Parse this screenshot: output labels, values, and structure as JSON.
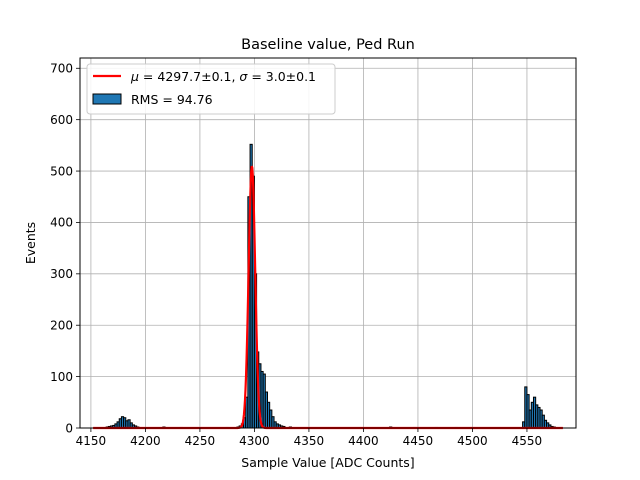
{
  "chart_data": {
    "type": "bar",
    "title": "Baseline value, Ped Run",
    "xlabel": "Sample Value [ADC Counts]",
    "ylabel": "Events",
    "xlim": [
      4140,
      4595
    ],
    "ylim": [
      0,
      720
    ],
    "x_ticks": [
      4150,
      4200,
      4250,
      4300,
      4350,
      4400,
      4450,
      4500,
      4550
    ],
    "y_ticks": [
      0,
      100,
      200,
      300,
      400,
      500,
      600,
      700
    ],
    "grid": true,
    "legend_placement": "upper left",
    "bin_width": 2,
    "series": [
      {
        "name": "RMS = 94.76",
        "kind": "histogram",
        "fill": "#1f77b4",
        "edge": "#000000",
        "bins": [
          [
            4165,
            2
          ],
          [
            4167,
            3
          ],
          [
            4169,
            4
          ],
          [
            4171,
            5
          ],
          [
            4173,
            8
          ],
          [
            4175,
            12
          ],
          [
            4177,
            18
          ],
          [
            4179,
            22
          ],
          [
            4181,
            20
          ],
          [
            4183,
            14
          ],
          [
            4185,
            16
          ],
          [
            4187,
            10
          ],
          [
            4189,
            6
          ],
          [
            4191,
            4
          ],
          [
            4193,
            2
          ],
          [
            4217,
            2
          ],
          [
            4233,
            1
          ],
          [
            4275,
            1
          ],
          [
            4285,
            2
          ],
          [
            4287,
            4
          ],
          [
            4289,
            8
          ],
          [
            4291,
            20
          ],
          [
            4293,
            60
          ],
          [
            4295,
            450
          ],
          [
            4297,
            552
          ],
          [
            4299,
            490
          ],
          [
            4301,
            300
          ],
          [
            4303,
            148
          ],
          [
            4305,
            125
          ],
          [
            4307,
            110
          ],
          [
            4309,
            105
          ],
          [
            4311,
            70
          ],
          [
            4313,
            50
          ],
          [
            4315,
            35
          ],
          [
            4317,
            22
          ],
          [
            4319,
            12
          ],
          [
            4321,
            8
          ],
          [
            4323,
            6
          ],
          [
            4325,
            4
          ],
          [
            4327,
            3
          ],
          [
            4333,
            2
          ],
          [
            4425,
            2
          ],
          [
            4447,
            1
          ],
          [
            4467,
            1
          ],
          [
            4485,
            1
          ],
          [
            4547,
            12
          ],
          [
            4549,
            80
          ],
          [
            4551,
            65
          ],
          [
            4553,
            35
          ],
          [
            4555,
            50
          ],
          [
            4557,
            60
          ],
          [
            4559,
            45
          ],
          [
            4561,
            40
          ],
          [
            4563,
            35
          ],
          [
            4565,
            25
          ],
          [
            4567,
            15
          ],
          [
            4569,
            10
          ],
          [
            4571,
            6
          ],
          [
            4573,
            3
          ],
          [
            4575,
            2
          ]
        ]
      },
      {
        "name": "$\\mu = 4297.7 \\pm 0.1, \\sigma = 3.0 \\pm 0.1$",
        "kind": "gaussian-fit",
        "color": "#ff0000",
        "amplitude": 510,
        "mu": 4297.7,
        "sigma": 3.0
      }
    ],
    "legend": {
      "fit_label": {
        "mu_symbol": "μ",
        "eq1": " = 4297.7±0.1, ",
        "sigma_symbol": "σ",
        "eq2": " = 3.0±0.1"
      },
      "hist_label": "RMS = 94.76"
    }
  }
}
